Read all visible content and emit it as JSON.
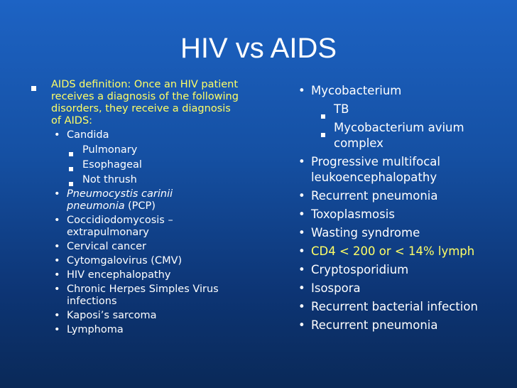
{
  "title": "HIV vs AIDS",
  "left_column": {
    "items": [
      {
        "text": "AIDS definition: Once an HIV patient receives a diagnosis of the following disorders, they receive a diagnosis of AIDS:",
        "children": [
          {
            "text": "Candida",
            "children": [
              {
                "text": "Pulmonary"
              },
              {
                "text": "Esophageal"
              },
              {
                "text": "Not thrush"
              }
            ]
          },
          {
            "parts": [
              "Pneumocystis carinii pneumonia",
              "(PCP)"
            ]
          },
          {
            "text": "Coccidiodomycosis – extrapulmonary"
          },
          {
            "text": "Cervical cancer"
          },
          {
            "text": "Cytomgalovirus (CMV)"
          },
          {
            "text": "HIV encephalopathy"
          },
          {
            "text": "Chronic Herpes Simples Virus infections"
          },
          {
            "text": "Kaposi’s sarcoma"
          },
          {
            "text": "Lymphoma"
          }
        ]
      }
    ]
  },
  "right_column": {
    "items": [
      {
        "text": "Mycobacterium",
        "children": [
          {
            "text": "TB"
          },
          {
            "text": "Mycobacterium avium complex"
          }
        ]
      },
      {
        "text": "Progressive multifocal leukoencephalopathy"
      },
      {
        "text": "Recurrent pneumonia"
      },
      {
        "text": "Toxoplasmosis"
      },
      {
        "text": "Wasting syndrome"
      },
      {
        "text": "CD4 < 200 or < 14% lymph"
      },
      {
        "text": "Cryptosporidium"
      },
      {
        "text": "Isospora"
      },
      {
        "text": "Recurrent bacterial infection"
      },
      {
        "text": "Recurrent pneumonia"
      }
    ]
  }
}
